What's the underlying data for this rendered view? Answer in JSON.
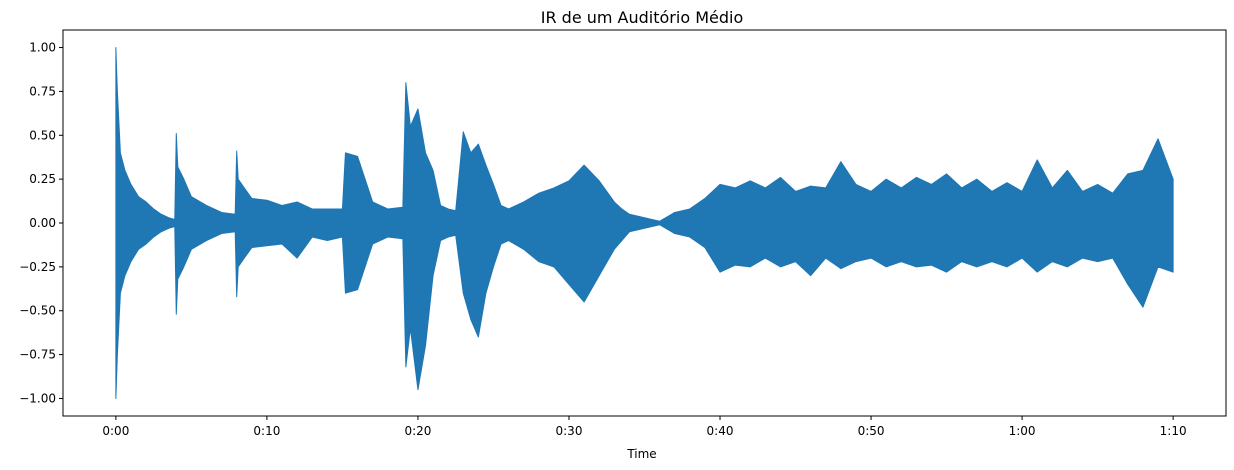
{
  "chart_data": {
    "type": "area",
    "title": "IR de um Auditório Médio",
    "xlabel": "Time",
    "ylabel": "",
    "xlim": [
      -3.5,
      73.5
    ],
    "ylim": [
      -1.1,
      1.1
    ],
    "x_ticks": [
      {
        "value": 0,
        "label": "0:00"
      },
      {
        "value": 10,
        "label": "0:10"
      },
      {
        "value": 20,
        "label": "0:20"
      },
      {
        "value": 30,
        "label": "0:30"
      },
      {
        "value": 40,
        "label": "0:40"
      },
      {
        "value": 50,
        "label": "0:50"
      },
      {
        "value": 60,
        "label": "1:00"
      },
      {
        "value": 70,
        "label": "1:10"
      }
    ],
    "y_ticks": [
      {
        "value": 1.0,
        "label": "1.00"
      },
      {
        "value": 0.75,
        "label": "0.75"
      },
      {
        "value": 0.5,
        "label": "0.50"
      },
      {
        "value": 0.25,
        "label": "0.25"
      },
      {
        "value": 0.0,
        "label": "0.00"
      },
      {
        "value": -0.25,
        "label": "−0.25"
      },
      {
        "value": -0.5,
        "label": "−0.50"
      },
      {
        "value": -0.75,
        "label": "−0.75"
      },
      {
        "value": -1.0,
        "label": "−1.00"
      }
    ],
    "grid": false,
    "legend": "none",
    "series": [
      {
        "color": "#1f77b4",
        "x": [
          0.0,
          0.1,
          0.3,
          0.6,
          1.0,
          1.5,
          2.0,
          2.5,
          3.0,
          3.5,
          3.9,
          4.0,
          4.1,
          4.5,
          5.0,
          6.0,
          7.0,
          7.9,
          8.0,
          8.1,
          8.5,
          9.0,
          10.0,
          11.0,
          12.0,
          13.0,
          14.0,
          15.0,
          15.2,
          16.0,
          17.0,
          18.0,
          19.0,
          19.2,
          19.5,
          20.0,
          20.5,
          21.0,
          21.5,
          22.0,
          22.5,
          23.0,
          23.5,
          24.0,
          24.5,
          25.0,
          25.5,
          26.0,
          27.0,
          28.0,
          29.0,
          30.0,
          31.0,
          32.0,
          33.0,
          33.5,
          34.0,
          35.0,
          36.0,
          37.0,
          38.0,
          39.0,
          40.0,
          41.0,
          42.0,
          43.0,
          44.0,
          45.0,
          46.0,
          47.0,
          48.0,
          49.0,
          50.0,
          51.0,
          52.0,
          53.0,
          54.0,
          55.0,
          56.0,
          57.0,
          58.0,
          59.0,
          60.0,
          61.0,
          62.0,
          63.0,
          64.0,
          65.0,
          66.0,
          67.0,
          68.0,
          69.0,
          70.0
        ],
        "upper": [
          1.0,
          0.75,
          0.4,
          0.3,
          0.22,
          0.15,
          0.12,
          0.08,
          0.05,
          0.03,
          0.02,
          0.51,
          0.32,
          0.25,
          0.15,
          0.1,
          0.06,
          0.05,
          0.41,
          0.25,
          0.2,
          0.14,
          0.13,
          0.1,
          0.12,
          0.08,
          0.08,
          0.08,
          0.4,
          0.38,
          0.12,
          0.08,
          0.09,
          0.8,
          0.55,
          0.65,
          0.4,
          0.3,
          0.1,
          0.08,
          0.07,
          0.52,
          0.4,
          0.45,
          0.33,
          0.22,
          0.1,
          0.08,
          0.12,
          0.17,
          0.2,
          0.24,
          0.33,
          0.24,
          0.12,
          0.08,
          0.05,
          0.03,
          0.01,
          0.06,
          0.08,
          0.14,
          0.22,
          0.2,
          0.24,
          0.2,
          0.26,
          0.18,
          0.21,
          0.2,
          0.35,
          0.22,
          0.18,
          0.25,
          0.2,
          0.26,
          0.22,
          0.28,
          0.2,
          0.25,
          0.18,
          0.23,
          0.18,
          0.36,
          0.2,
          0.3,
          0.18,
          0.22,
          0.17,
          0.28,
          0.3,
          0.48,
          0.25
        ],
        "lower": [
          -1.0,
          -0.75,
          -0.4,
          -0.3,
          -0.22,
          -0.15,
          -0.12,
          -0.08,
          -0.05,
          -0.03,
          -0.02,
          -0.52,
          -0.32,
          -0.25,
          -0.15,
          -0.1,
          -0.06,
          -0.05,
          -0.42,
          -0.25,
          -0.2,
          -0.14,
          -0.13,
          -0.12,
          -0.2,
          -0.08,
          -0.1,
          -0.08,
          -0.4,
          -0.38,
          -0.12,
          -0.08,
          -0.09,
          -0.82,
          -0.6,
          -0.95,
          -0.7,
          -0.3,
          -0.1,
          -0.08,
          -0.07,
          -0.4,
          -0.55,
          -0.65,
          -0.4,
          -0.25,
          -0.12,
          -0.1,
          -0.15,
          -0.22,
          -0.25,
          -0.35,
          -0.45,
          -0.3,
          -0.15,
          -0.1,
          -0.05,
          -0.03,
          -0.01,
          -0.06,
          -0.08,
          -0.14,
          -0.28,
          -0.24,
          -0.25,
          -0.2,
          -0.25,
          -0.22,
          -0.3,
          -0.2,
          -0.26,
          -0.22,
          -0.2,
          -0.25,
          -0.22,
          -0.25,
          -0.24,
          -0.28,
          -0.22,
          -0.25,
          -0.22,
          -0.25,
          -0.2,
          -0.28,
          -0.22,
          -0.25,
          -0.2,
          -0.22,
          -0.2,
          -0.35,
          -0.48,
          -0.25,
          -0.28
        ]
      }
    ]
  }
}
